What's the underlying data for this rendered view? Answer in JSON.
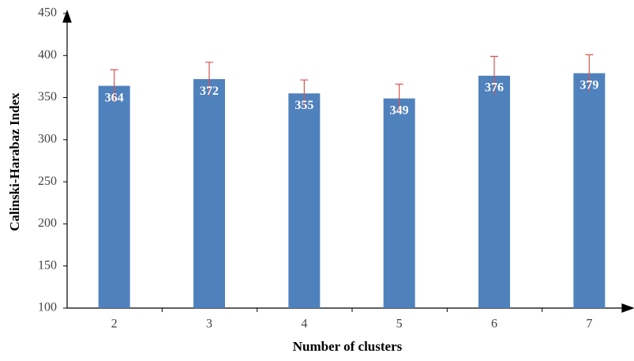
{
  "chart_data": {
    "type": "bar",
    "x_label": "Number of clusters",
    "y_label": "Calinski-Harabaz Index",
    "categories": [
      "2",
      "3",
      "4",
      "5",
      "6",
      "7"
    ],
    "values": [
      364,
      372,
      355,
      349,
      376,
      379
    ],
    "errors": [
      19,
      20,
      16,
      17,
      23,
      22
    ],
    "color": "#4f81bd",
    "error_color": "#d9534f",
    "ylim": [
      100,
      450
    ],
    "yticks": [
      100,
      150,
      200,
      250,
      300,
      350,
      400,
      450
    ],
    "grid": false,
    "data_labels": true
  }
}
